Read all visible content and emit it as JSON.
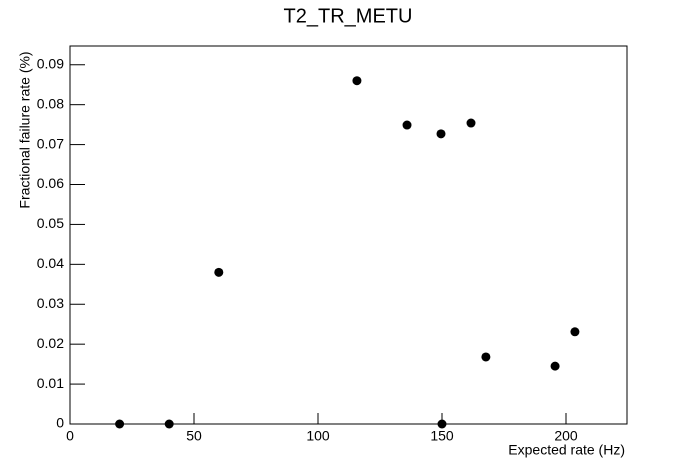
{
  "chart_data": {
    "type": "scatter",
    "title": "T2_TR_METU",
    "x_label": "Expected rate (Hz)",
    "y_label": "Fractional failure rate (%)",
    "x": [
      20,
      40,
      60,
      115.7,
      135.9,
      149.6,
      150,
      161.7,
      167.7,
      195.6,
      203.6
    ],
    "values": [
      0,
      0,
      0.038,
      0.086,
      0.0749,
      0.0727,
      0,
      0.0754,
      0.0168,
      0.0145,
      0.0231
    ],
    "color": "#000000",
    "xlim": [
      0,
      224.6
    ],
    "ylim": [
      0,
      0.0947
    ],
    "xticks": [
      0,
      50,
      100,
      150,
      200
    ],
    "yticks": [
      0,
      0.01,
      0.02,
      0.03,
      0.04,
      0.05,
      0.06,
      0.07,
      0.08,
      0.09
    ]
  }
}
